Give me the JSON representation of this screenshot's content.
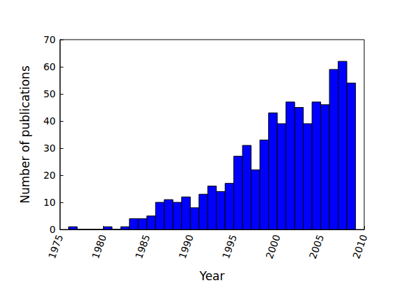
{
  "chart_data": {
    "type": "histogram",
    "x_label": "Year",
    "y_label": "Number of publications",
    "bins": [
      1976,
      1977,
      1978,
      1979,
      1980,
      1981,
      1982,
      1983,
      1984,
      1985,
      1986,
      1987,
      1988,
      1989,
      1990,
      1991,
      1992,
      1993,
      1994,
      1995,
      1996,
      1997,
      1998,
      1999,
      2000,
      2001,
      2002,
      2003,
      2004,
      2005,
      2006,
      2007,
      2008,
      2009
    ],
    "values": [
      1,
      0,
      0,
      0,
      1,
      0,
      1,
      4,
      4,
      5,
      10,
      11,
      10,
      12,
      8,
      13,
      16,
      14,
      17,
      27,
      31,
      22,
      33,
      43,
      39,
      47,
      45,
      39,
      47,
      46,
      59,
      62,
      54
    ],
    "color": "#0000ff",
    "xlim": [
      1975,
      2010
    ],
    "xticks": [
      1975,
      1980,
      1985,
      1990,
      1995,
      2000,
      2005,
      2010
    ],
    "ylim": [
      0,
      70
    ],
    "yticks": [
      0,
      10,
      20,
      30,
      40,
      50,
      60,
      70
    ],
    "grid": false
  }
}
